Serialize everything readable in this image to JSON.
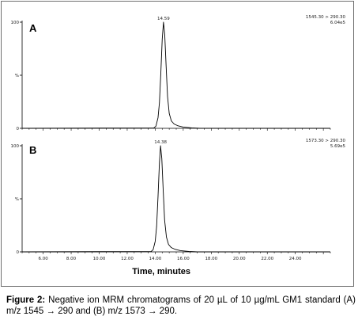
{
  "chart_data": [
    {
      "type": "line",
      "panel_label": "A",
      "header": [
        "1545.30 > 290.30",
        "6.04e5"
      ],
      "peak_label": "14.59",
      "xlabel": "Time, minutes",
      "xlim": [
        4.5,
        26.5
      ],
      "ylim": [
        0,
        100
      ],
      "x_ticks": [
        "6.00",
        "8.00",
        "10.00",
        "12.00",
        "14.00",
        "16.00",
        "18.00",
        "20.00",
        "22.00",
        "24.00"
      ],
      "x_tick_values": [
        6,
        8,
        10,
        12,
        14,
        16,
        18,
        20,
        22,
        24
      ],
      "y_ticks": [
        "0",
        "%",
        "100"
      ],
      "series": [
        {
          "x": [
            4.5,
            13.9,
            14.05,
            14.2,
            14.3,
            14.4,
            14.5,
            14.59,
            14.68,
            14.78,
            14.88,
            15.0,
            15.15,
            15.35,
            15.6,
            16.0,
            16.6,
            17.2,
            26.5
          ],
          "y": [
            0,
            0.3,
            2,
            10,
            24,
            52,
            84,
            100,
            88,
            58,
            30,
            14,
            7,
            4,
            2.5,
            1.2,
            0.4,
            0,
            0
          ]
        }
      ]
    },
    {
      "type": "line",
      "panel_label": "B",
      "header": [
        "1573.30 > 290.30",
        "5.69e5"
      ],
      "peak_label": "14.38",
      "xlabel": "Time, minutes",
      "xlim": [
        4.5,
        26.5
      ],
      "ylim": [
        0,
        100
      ],
      "x_ticks": [
        "6.00",
        "8.00",
        "10.00",
        "12.00",
        "14.00",
        "16.00",
        "18.00",
        "20.00",
        "22.00",
        "24.00"
      ],
      "x_tick_values": [
        6,
        8,
        10,
        12,
        14,
        16,
        18,
        20,
        22,
        24
      ],
      "y_ticks": [
        "0",
        "%",
        "100"
      ],
      "series": [
        {
          "x": [
            4.5,
            13.7,
            13.85,
            14.0,
            14.1,
            14.2,
            14.3,
            14.38,
            14.47,
            14.57,
            14.67,
            14.8,
            14.95,
            15.15,
            15.4,
            15.8,
            16.4,
            17.0,
            26.5
          ],
          "y": [
            0,
            0.3,
            2,
            10,
            24,
            52,
            84,
            100,
            88,
            58,
            30,
            14,
            7,
            4,
            2.5,
            1.2,
            0.4,
            0,
            0
          ]
        }
      ]
    }
  ],
  "caption": {
    "label": "Figure 2:",
    "text": " Negative ion MRM chromatograms of 20 µL of 10 µg/mL GM1 standard (A) m/z 1545 → 290 and (B) m/z 1573 → 290."
  }
}
